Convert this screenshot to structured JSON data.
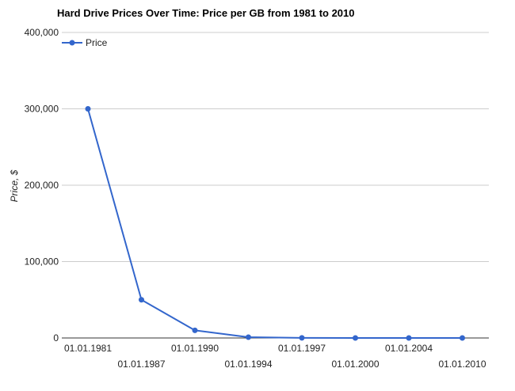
{
  "chart_data": {
    "type": "line",
    "title": "Hard Drive Prices Over Time: Price per GB from 1981 to 2010",
    "xlabel": "",
    "ylabel": "Price, $",
    "categories": [
      "01.01.1981",
      "01.01.1987",
      "01.01.1990",
      "01.01.1994",
      "01.01.1997",
      "01.01.2000",
      "01.01.2004",
      "01.01.2010"
    ],
    "series": [
      {
        "name": "Price",
        "values": [
          300000,
          50000,
          10000,
          1000,
          100,
          10,
          1,
          0.1
        ]
      }
    ],
    "ylim": [
      0,
      400000
    ],
    "y_ticks": [
      "0",
      "100,000",
      "200,000",
      "300,000",
      "400,000"
    ],
    "y_tick_values": [
      0,
      100000,
      200000,
      300000,
      400000
    ],
    "grid": true,
    "legend_position": "top-left",
    "colors": {
      "series": "#3366cc",
      "grid": "#cccccc",
      "axis": "#333333"
    }
  }
}
